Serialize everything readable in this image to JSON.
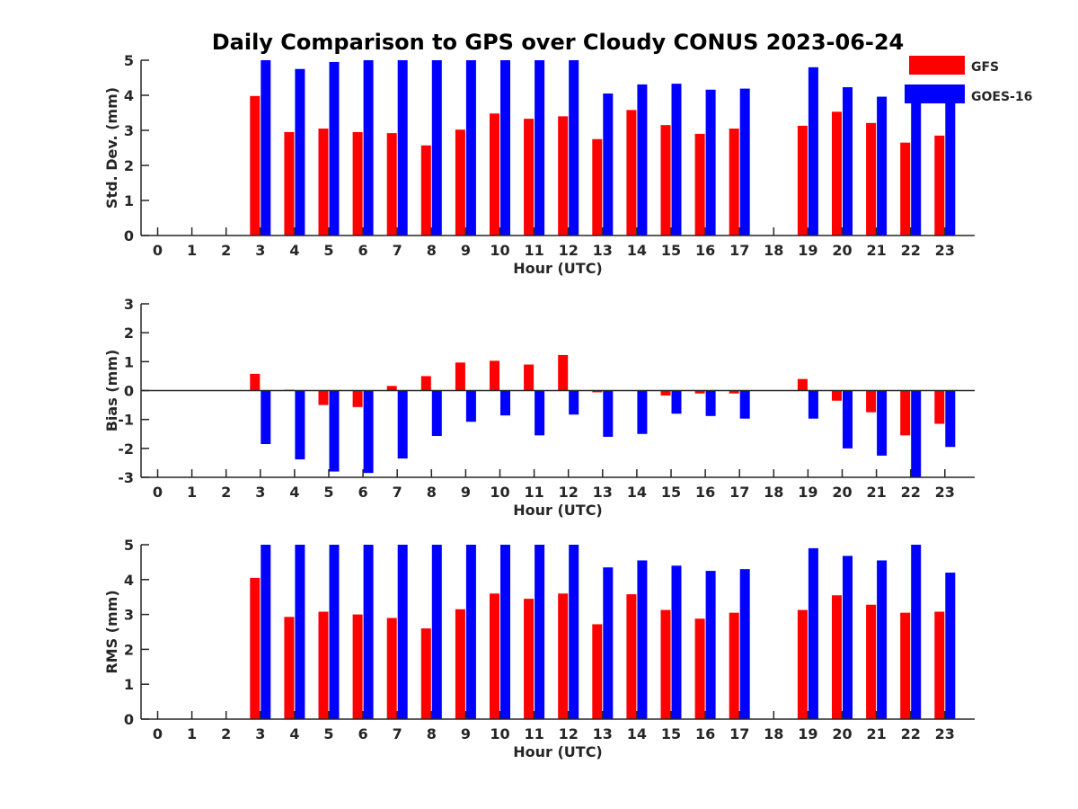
{
  "title": "Daily Comparison to GPS over Cloudy CONUS 2023-06-24",
  "colors": {
    "GFS": "#ff0000",
    "GOES-16": "#0000ff",
    "axis": "#262626"
  },
  "legend": {
    "placement": "top-right",
    "entries": [
      "GFS",
      "GOES-16"
    ]
  },
  "chart_data": [
    {
      "type": "bar",
      "title": "Daily Comparison to GPS over Cloudy CONUS 2023-06-24",
      "xlabel": "Hour (UTC)",
      "ylabel": "Std. Dev. (mm)",
      "ylim": [
        0,
        5
      ],
      "yticks": [
        0,
        1,
        2,
        3,
        4,
        5
      ],
      "categories": [
        "0",
        "1",
        "2",
        "3",
        "4",
        "5",
        "6",
        "7",
        "8",
        "9",
        "10",
        "11",
        "12",
        "13",
        "14",
        "15",
        "16",
        "17",
        "18",
        "19",
        "20",
        "21",
        "22",
        "23"
      ],
      "series": [
        {
          "name": "GFS",
          "values": [
            null,
            null,
            null,
            3.98,
            2.95,
            3.05,
            2.95,
            2.92,
            2.57,
            3.02,
            3.48,
            3.33,
            3.4,
            2.75,
            3.58,
            3.15,
            2.9,
            3.05,
            null,
            3.13,
            3.53,
            3.21,
            2.65,
            2.85
          ]
        },
        {
          "name": "GOES-16",
          "values": [
            null,
            null,
            null,
            5.0,
            4.75,
            4.95,
            5.0,
            5.0,
            5.0,
            5.0,
            5.0,
            5.0,
            5.0,
            4.05,
            4.31,
            4.33,
            4.16,
            4.19,
            null,
            4.8,
            4.23,
            3.96,
            3.85,
            3.82
          ]
        }
      ]
    },
    {
      "type": "bar",
      "xlabel": "Hour (UTC)",
      "ylabel": "Bias (mm)",
      "ylim": [
        -3,
        3
      ],
      "yticks": [
        -3,
        -2,
        -1,
        0,
        1,
        2,
        3
      ],
      "categories": [
        "0",
        "1",
        "2",
        "3",
        "4",
        "5",
        "6",
        "7",
        "8",
        "9",
        "10",
        "11",
        "12",
        "13",
        "14",
        "15",
        "16",
        "17",
        "18",
        "19",
        "20",
        "21",
        "22",
        "23"
      ],
      "series": [
        {
          "name": "GFS",
          "values": [
            null,
            null,
            null,
            0.58,
            0.03,
            -0.5,
            -0.57,
            0.16,
            0.5,
            0.97,
            1.03,
            0.9,
            1.23,
            -0.06,
            0.0,
            -0.17,
            -0.1,
            -0.1,
            null,
            0.4,
            -0.35,
            -0.75,
            -1.55,
            -1.15
          ]
        },
        {
          "name": "GOES-16",
          "values": [
            null,
            null,
            null,
            -1.85,
            -2.38,
            -2.8,
            -2.85,
            -2.35,
            -1.57,
            -1.08,
            -0.86,
            -1.55,
            -0.83,
            -1.6,
            -1.5,
            -0.8,
            -0.88,
            -0.97,
            null,
            -0.97,
            -2.0,
            -2.25,
            -3.0,
            -1.95
          ]
        }
      ]
    },
    {
      "type": "bar",
      "xlabel": "Hour (UTC)",
      "ylabel": "RMS (mm)",
      "ylim": [
        0,
        5
      ],
      "yticks": [
        0,
        1,
        2,
        3,
        4,
        5
      ],
      "categories": [
        "0",
        "1",
        "2",
        "3",
        "4",
        "5",
        "6",
        "7",
        "8",
        "9",
        "10",
        "11",
        "12",
        "13",
        "14",
        "15",
        "16",
        "17",
        "18",
        "19",
        "20",
        "21",
        "22",
        "23"
      ],
      "series": [
        {
          "name": "GFS",
          "values": [
            null,
            null,
            null,
            4.05,
            2.93,
            3.08,
            3.0,
            2.9,
            2.6,
            3.15,
            3.6,
            3.45,
            3.6,
            2.72,
            3.58,
            3.13,
            2.88,
            3.05,
            null,
            3.13,
            3.55,
            3.28,
            3.05,
            3.08
          ]
        },
        {
          "name": "GOES-16",
          "values": [
            null,
            null,
            null,
            5.0,
            5.0,
            5.0,
            5.0,
            5.0,
            5.0,
            5.0,
            5.0,
            5.0,
            5.0,
            4.35,
            4.55,
            4.4,
            4.25,
            4.3,
            null,
            4.9,
            4.68,
            4.55,
            5.0,
            4.2
          ]
        }
      ]
    }
  ]
}
